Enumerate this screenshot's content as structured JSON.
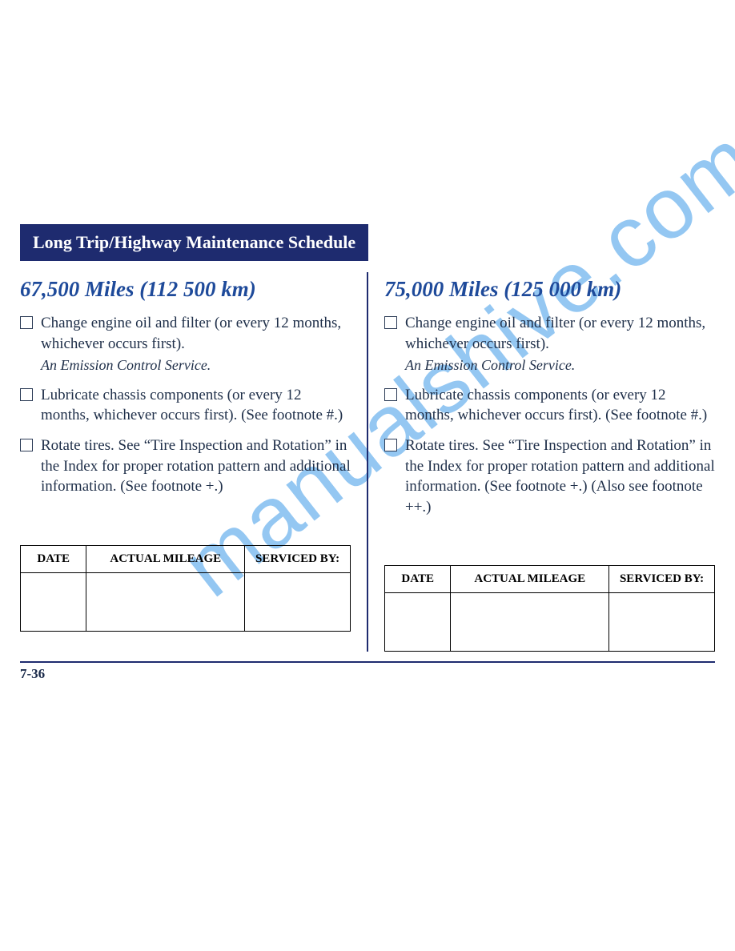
{
  "watermark": "manualshive.com",
  "section_header": "Long Trip/Highway Maintenance Schedule",
  "page_number": "7-36",
  "table_headers": {
    "date": "DATE",
    "mileage": "ACTUAL MILEAGE",
    "serviced": "SERVICED BY:"
  },
  "left": {
    "heading": "67,500 Miles (112 500 km)",
    "items": [
      {
        "text": "Change engine oil and filter (or every 12 months, whichever occurs first).",
        "sub": "An Emission Control Service."
      },
      {
        "text": "Lubricate chassis components (or every 12 months, whichever occurs first). (See footnote #.)"
      },
      {
        "text": "Rotate tires. See “Tire Inspection and Rotation” in the Index for proper rotation pattern and additional information. (See footnote +.)"
      }
    ]
  },
  "right": {
    "heading": "75,000 Miles (125 000 km)",
    "items": [
      {
        "text": "Change engine oil and filter (or every 12 months, whichever occurs first).",
        "sub": "An Emission Control Service."
      },
      {
        "text": "Lubricate chassis components (or every 12 months, whichever occurs first). (See footnote #.)"
      },
      {
        "text": "Rotate tires. See “Tire Inspection and Rotation” in the Index for proper rotation pattern and additional information. (See footnote +.) (Also see footnote ++.)"
      }
    ]
  }
}
